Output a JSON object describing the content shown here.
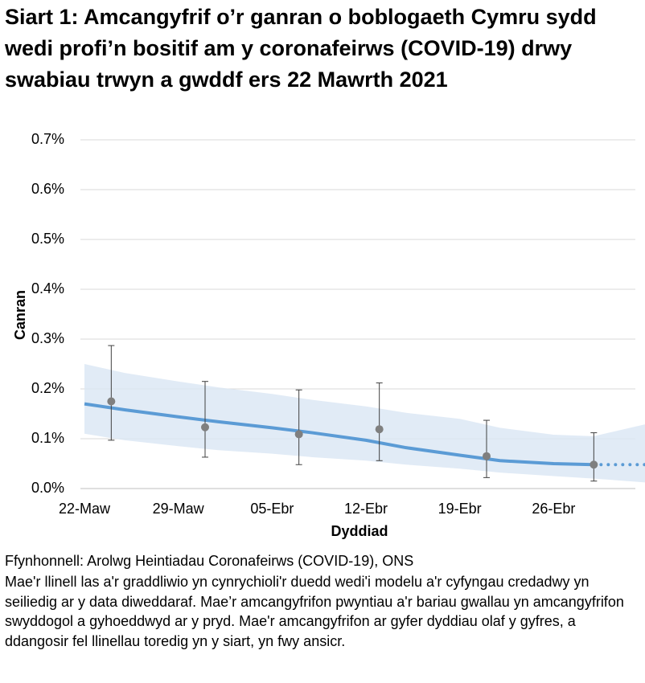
{
  "chart_data": {
    "type": "line",
    "title": "Siart 1: Amcangyfrif o’r ganran o boblogaeth Cymru sydd wedi profi’n bositif am y coronafeirws (COVID-19) drwy swabiau trwyn a gwddf ers 22 Mawrth 2021",
    "y_label": "Canran",
    "x_label": "Dyddiad",
    "source": "Ffynhonnell: Arolwg Heintiadau Coronafeirws (COVID-19), ONS",
    "note": "Mae'r llinell las a'r graddliwio yn cynrychioli'r duedd wedi'i modelu a'r cyfyngau credadwy yn seiliedig ar y data diweddaraf. Mae’r amcangyfrifon pwyntiau a'r bariau gwallau yn amcangyfrifon swyddogol a gyhoeddwyd ar y pryd. Mae'r amcangyfrifon ar gyfer dyddiau olaf y gyfres, a ddangosir fel llinellau toredig yn y siart, yn fwy ansicr.",
    "xlim": [
      "2021-03-22",
      "2021-05-03"
    ],
    "xticks": [
      {
        "value": "2021-03-22",
        "label": "22-Maw"
      },
      {
        "value": "2021-03-29",
        "label": "29-Maw"
      },
      {
        "value": "2021-04-05",
        "label": "05-Ebr"
      },
      {
        "value": "2021-04-12",
        "label": "12-Ebr"
      },
      {
        "value": "2021-04-19",
        "label": "19-Ebr"
      },
      {
        "value": "2021-04-26",
        "label": "26-Ebr"
      }
    ],
    "ylim": [
      0,
      0.7
    ],
    "yticks": [
      {
        "value": 0,
        "label": "0.0%"
      },
      {
        "value": 0.1,
        "label": "0.1%"
      },
      {
        "value": 0.2,
        "label": "0.2%"
      },
      {
        "value": 0.3,
        "label": "0.3%"
      },
      {
        "value": 0.4,
        "label": "0.4%"
      },
      {
        "value": 0.5,
        "label": "0.5%"
      },
      {
        "value": 0.6,
        "label": "0.6%"
      },
      {
        "value": 0.7,
        "label": "0.7%"
      }
    ],
    "grid": true,
    "trend": {
      "color": "#5b9bd5",
      "x": [
        "2021-03-22",
        "2021-03-25",
        "2021-03-29",
        "2021-04-01",
        "2021-04-05",
        "2021-04-08",
        "2021-04-12",
        "2021-04-15",
        "2021-04-19",
        "2021-04-22",
        "2021-04-26",
        "2021-04-29"
      ],
      "values": [
        0.17,
        0.158,
        0.144,
        0.134,
        0.122,
        0.112,
        0.097,
        0.082,
        0.067,
        0.056,
        0.05,
        0.048
      ],
      "lower": [
        0.11,
        0.097,
        0.085,
        0.077,
        0.07,
        0.063,
        0.056,
        0.048,
        0.04,
        0.032,
        0.025,
        0.02
      ],
      "upper": [
        0.25,
        0.232,
        0.215,
        0.203,
        0.19,
        0.178,
        0.165,
        0.152,
        0.14,
        0.122,
        0.108,
        0.105
      ]
    },
    "trend_provisional": {
      "color": "#5b9bd5",
      "x": [
        "2021-04-29",
        "2021-05-03"
      ],
      "values": [
        0.048,
        0.048
      ],
      "lower": [
        0.02,
        0.012
      ],
      "upper": [
        0.105,
        0.13
      ]
    },
    "estimates": {
      "color": "#7f7f7f",
      "x": [
        "2021-03-24",
        "2021-03-31",
        "2021-04-07",
        "2021-04-13",
        "2021-04-21",
        "2021-04-29"
      ],
      "values": [
        0.175,
        0.123,
        0.109,
        0.119,
        0.065,
        0.048
      ],
      "lower": [
        0.097,
        0.063,
        0.048,
        0.056,
        0.022,
        0.015
      ],
      "upper": [
        0.287,
        0.215,
        0.198,
        0.212,
        0.137,
        0.112
      ]
    }
  }
}
